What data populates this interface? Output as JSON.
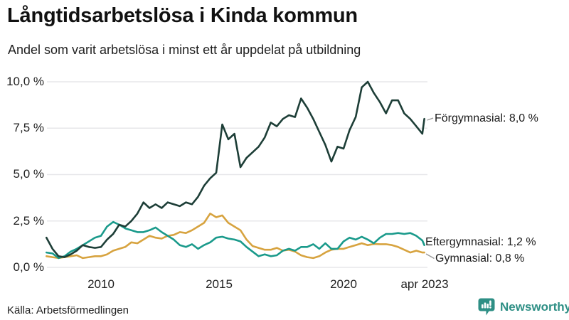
{
  "header": {
    "title": "Långtidsarbetslösa i Kinda kommun",
    "subtitle": "Andel som varit arbetslösa i minst ett år uppdelat på utbildning"
  },
  "footer": {
    "source": "Källa: Arbetsförmedlingen",
    "brand": "Newsworthy"
  },
  "colors": {
    "grid": "#e7e7ea",
    "connector": "#999999",
    "text": "#1a1a1a",
    "brand_teal": "#2e8f85",
    "forgymnasial": "#1d3e37",
    "eftergymnasial": "#1a9a8b",
    "gymnasial": "#d7a33f"
  },
  "chart_data": {
    "type": "line",
    "title": "Långtidsarbetslösa i Kinda kommun",
    "subtitle": "Andel som varit arbetslösa i minst ett år uppdelat på utbildning",
    "xlabel": "",
    "ylabel": "",
    "unit": "%",
    "xlim": [
      2007.75,
      2023.33
    ],
    "ylim": [
      0,
      10.3
    ],
    "grid": true,
    "legend_position": "line-end-labels",
    "x": [
      2007.75,
      2008,
      2008.25,
      2008.5,
      2008.75,
      2009,
      2009.25,
      2009.5,
      2009.75,
      2010,
      2010.25,
      2010.5,
      2010.75,
      2011,
      2011.25,
      2011.5,
      2011.75,
      2012,
      2012.25,
      2012.5,
      2012.75,
      2013,
      2013.25,
      2013.5,
      2013.75,
      2014,
      2014.25,
      2014.5,
      2014.75,
      2015,
      2015.25,
      2015.5,
      2015.75,
      2016,
      2016.25,
      2016.5,
      2016.75,
      2017,
      2017.25,
      2017.5,
      2017.75,
      2018,
      2018.25,
      2018.5,
      2018.75,
      2019,
      2019.25,
      2019.5,
      2019.75,
      2020,
      2020.25,
      2020.5,
      2020.75,
      2021,
      2021.25,
      2021.5,
      2021.75,
      2022,
      2022.25,
      2022.5,
      2022.75,
      2023,
      2023.25,
      2023.33
    ],
    "series": [
      {
        "name": "Förgymnasial",
        "end_value": 8.0,
        "end_label": "Förgymnasial: 8,0 %",
        "color": "#1d3e37",
        "values": [
          1.6,
          1.0,
          0.6,
          0.55,
          0.7,
          0.9,
          1.2,
          1.1,
          1.05,
          1.1,
          1.5,
          1.8,
          2.3,
          2.2,
          2.5,
          2.9,
          3.5,
          3.2,
          3.4,
          3.2,
          3.5,
          3.4,
          3.3,
          3.5,
          3.4,
          3.8,
          4.4,
          4.8,
          5.1,
          7.7,
          6.9,
          7.2,
          5.4,
          5.9,
          6.2,
          6.5,
          7.0,
          7.8,
          7.6,
          8.0,
          8.2,
          8.1,
          9.1,
          8.6,
          8.0,
          7.3,
          6.6,
          5.7,
          6.5,
          6.4,
          7.4,
          8.1,
          9.7,
          10.0,
          9.4,
          8.9,
          8.3,
          9.0,
          9.0,
          8.3,
          8.0,
          7.6,
          7.2,
          8.0
        ]
      },
      {
        "name": "Eftergymnasial",
        "end_value": 1.2,
        "end_label": "Eftergymnasial: 1,2 %",
        "color": "#1a9a8b",
        "values": [
          0.8,
          0.75,
          0.5,
          0.6,
          0.85,
          1.0,
          1.2,
          1.4,
          1.6,
          1.7,
          2.2,
          2.45,
          2.3,
          2.1,
          2.0,
          1.9,
          1.9,
          2.0,
          2.15,
          1.9,
          1.7,
          1.5,
          1.2,
          1.1,
          1.25,
          1.0,
          1.2,
          1.35,
          1.6,
          1.65,
          1.55,
          1.5,
          1.4,
          1.1,
          0.85,
          0.6,
          0.7,
          0.6,
          0.65,
          0.9,
          1.0,
          0.9,
          1.1,
          1.1,
          1.25,
          1.0,
          1.3,
          1.0,
          1.0,
          1.4,
          1.6,
          1.5,
          1.65,
          1.5,
          1.3,
          1.6,
          1.8,
          1.8,
          1.85,
          1.8,
          1.85,
          1.7,
          1.45,
          1.2
        ]
      },
      {
        "name": "Gymnasial",
        "end_value": 0.8,
        "end_label": "Gymnasial: 0,8 %",
        "color": "#d7a33f",
        "values": [
          0.6,
          0.55,
          0.5,
          0.55,
          0.6,
          0.65,
          0.5,
          0.55,
          0.6,
          0.6,
          0.7,
          0.9,
          1.0,
          1.1,
          1.35,
          1.3,
          1.5,
          1.7,
          1.6,
          1.55,
          1.7,
          1.75,
          1.9,
          1.85,
          2.0,
          2.2,
          2.4,
          2.9,
          2.7,
          2.8,
          2.4,
          2.2,
          2.0,
          1.5,
          1.15,
          1.05,
          0.95,
          0.95,
          1.05,
          0.9,
          0.95,
          0.85,
          0.65,
          0.55,
          0.5,
          0.6,
          0.8,
          0.95,
          1.0,
          1.0,
          1.1,
          1.2,
          1.3,
          1.2,
          1.26,
          1.25,
          1.25,
          1.2,
          1.1,
          0.95,
          0.8,
          0.9,
          0.8,
          0.8
        ]
      }
    ],
    "x_ticks": [
      {
        "label": "2010",
        "x": 2010
      },
      {
        "label": "2015",
        "x": 2015
      },
      {
        "label": "2020",
        "x": 2020
      },
      {
        "label": "apr 2023",
        "x": 2023.33
      }
    ],
    "y_ticks": [
      {
        "label": "10,0 %",
        "value": 10
      },
      {
        "label": "7,5 %",
        "value": 7.5
      },
      {
        "label": "5,0 %",
        "value": 5
      },
      {
        "label": "2,5 %",
        "value": 2.5
      },
      {
        "label": "0,0 %",
        "value": 0
      }
    ]
  }
}
